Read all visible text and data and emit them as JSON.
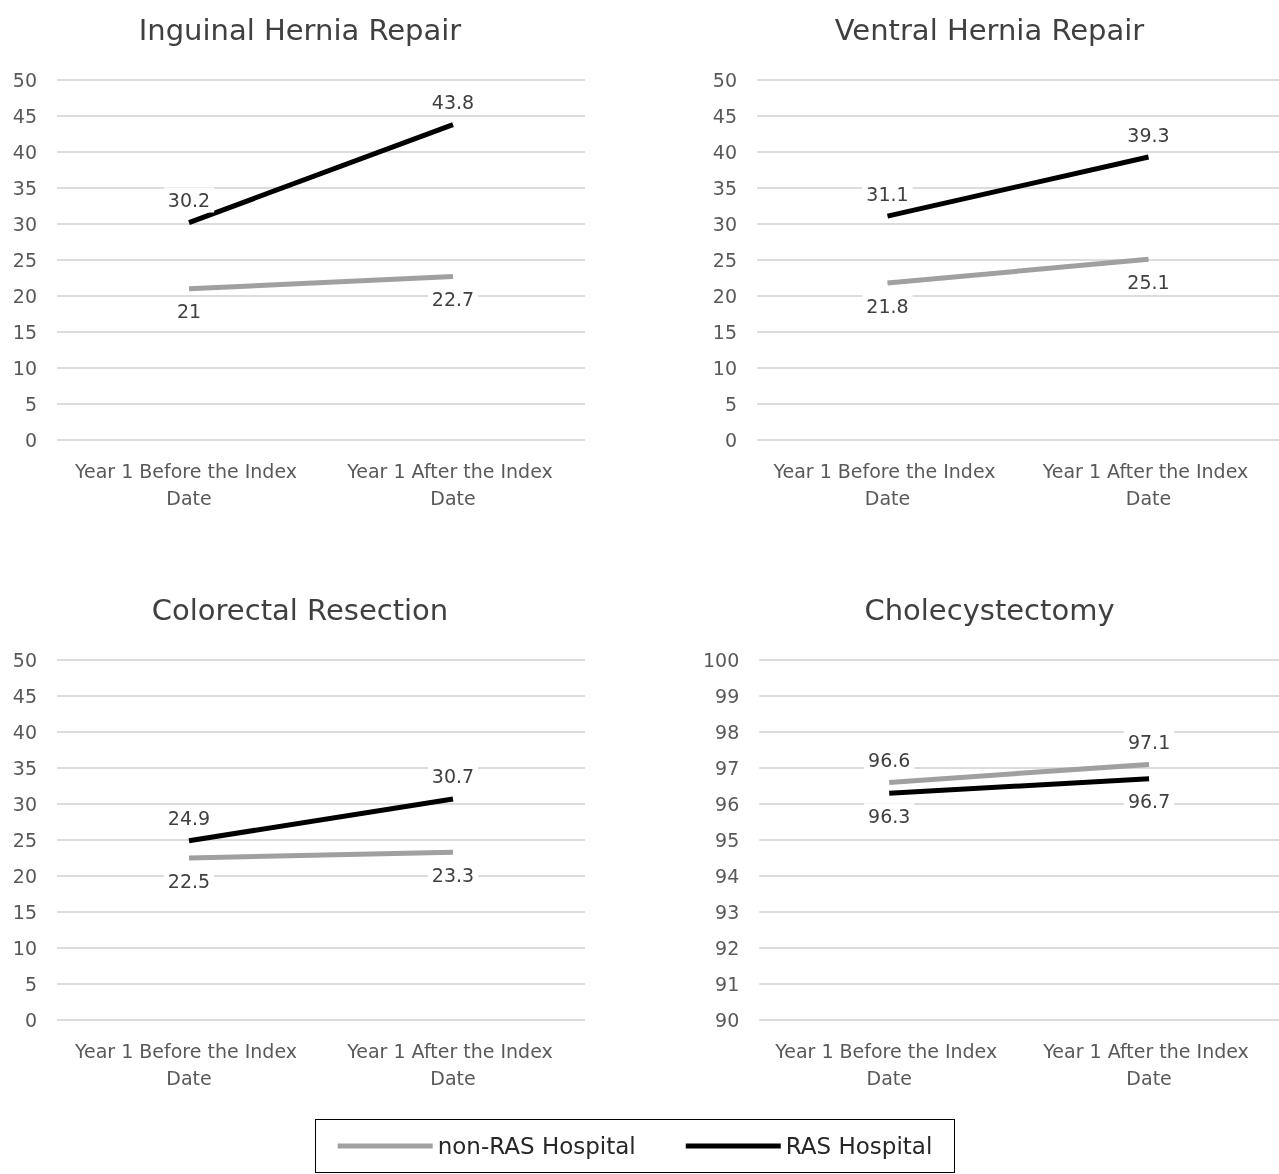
{
  "chart_data": [
    {
      "type": "line",
      "title": "Inguinal Hernia Repair",
      "categories": [
        "Year 1 Before the Index Date",
        "Year 1 After the Index Date"
      ],
      "series": [
        {
          "color": "#a0a0a0",
          "values": [
            21,
            22.7
          ]
        },
        {
          "color": "#000000",
          "values": [
            30.2,
            43.8
          ]
        }
      ],
      "ylim": [
        0,
        50
      ],
      "yticks": [
        0,
        5,
        10,
        15,
        20,
        25,
        30,
        35,
        40,
        45,
        50
      ],
      "grid": "y",
      "data_labels": true,
      "marker": "none",
      "line_style": "solid"
    },
    {
      "type": "line",
      "title": "Ventral Hernia Repair",
      "categories": [
        "Year 1 Before the Index Date",
        "Year 1 After the Index Date"
      ],
      "series": [
        {
          "color": "#a0a0a0",
          "values": [
            21.8,
            25.1
          ]
        },
        {
          "color": "#000000",
          "values": [
            31.1,
            39.3
          ]
        }
      ],
      "ylim": [
        0,
        50
      ],
      "yticks": [
        0,
        5,
        10,
        15,
        20,
        25,
        30,
        35,
        40,
        45,
        50
      ],
      "grid": "y",
      "data_labels": true,
      "marker": "none",
      "line_style": "solid"
    },
    {
      "type": "line",
      "title": "Colorectal Resection",
      "categories": [
        "Year 1 Before the Index Date",
        "Year 1 After the Index Date"
      ],
      "series": [
        {
          "color": "#a0a0a0",
          "values": [
            22.5,
            23.3
          ]
        },
        {
          "color": "#000000",
          "values": [
            24.9,
            30.7
          ]
        }
      ],
      "ylim": [
        0,
        50
      ],
      "yticks": [
        0,
        5,
        10,
        15,
        20,
        25,
        30,
        35,
        40,
        45,
        50
      ],
      "grid": "y",
      "data_labels": true,
      "marker": "none",
      "line_style": "solid"
    },
    {
      "type": "line",
      "title": "Cholecystectomy",
      "categories": [
        "Year 1 Before the Index Date",
        "Year 1 After the Index Date"
      ],
      "series": [
        {
          "name": "non-RAS Hospital",
          "color": "#a0a0a0",
          "values": [
            96.6,
            97.1
          ]
        },
        {
          "name": "RAS Hospital",
          "color": "#000000",
          "values": [
            96.3,
            96.7
          ]
        }
      ],
      "ylim": [
        90,
        100
      ],
      "yticks": [
        90,
        91,
        92,
        93,
        94,
        95,
        96,
        97,
        98,
        99,
        100
      ],
      "grid": "y",
      "legend": "bottom",
      "data_labels": true,
      "marker": "none",
      "line_style": "solid"
    }
  ]
}
